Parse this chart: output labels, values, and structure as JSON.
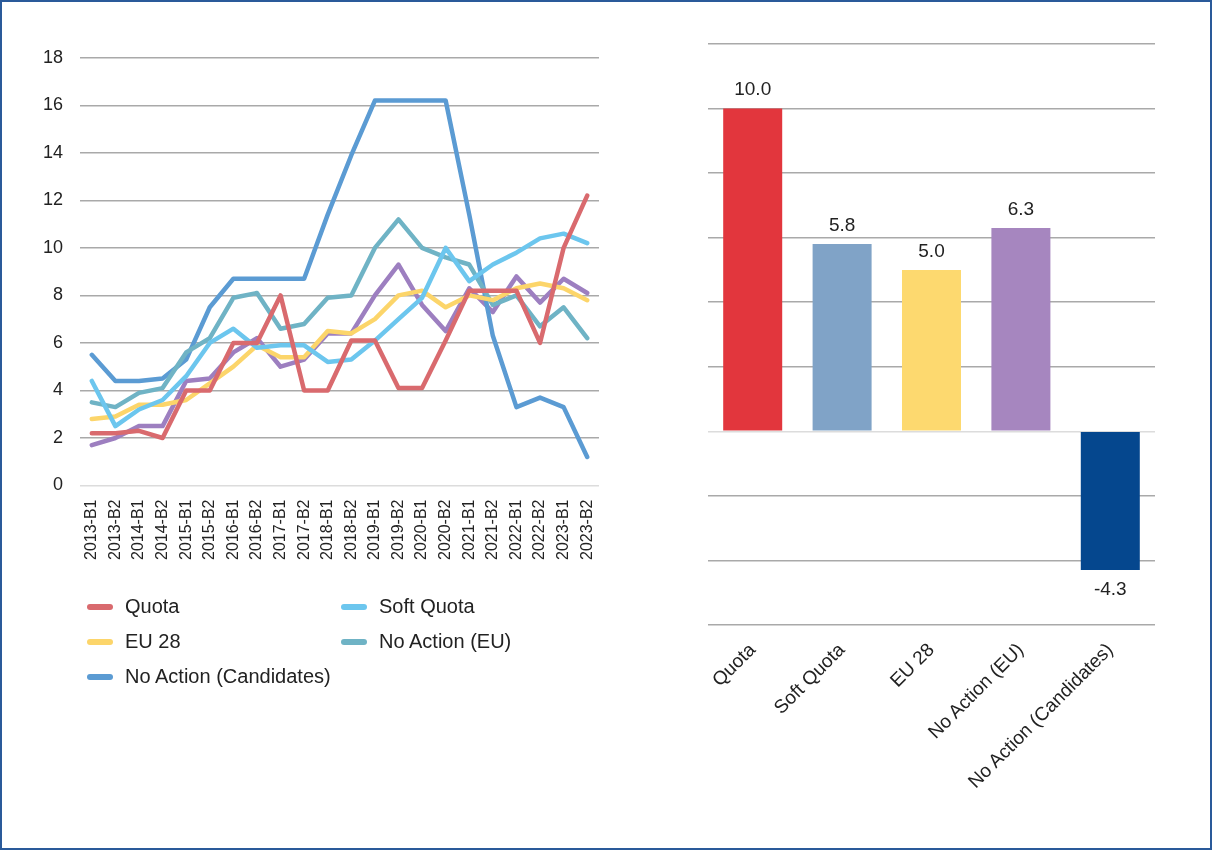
{
  "chart_data": [
    {
      "type": "line",
      "categories": [
        "2013-B1",
        "2013-B2",
        "2014-B1",
        "2014-B2",
        "2015-B1",
        "2015-B2",
        "2016-B1",
        "2016-B2",
        "2017-B1",
        "2017-B2",
        "2018-B1",
        "2018-B2",
        "2019-B1",
        "2019-B2",
        "2020-B1",
        "2020-B2",
        "2021-B1",
        "2021-B2",
        "2022-B1",
        "2022-B2",
        "2023-B1",
        "2023-B2"
      ],
      "series": [
        {
          "name": "Quota",
          "color": "#d96a6e",
          "values": [
            2.2,
            2.2,
            2.3,
            2.0,
            4.0,
            4.0,
            6.0,
            6.0,
            8.0,
            4.0,
            4.0,
            6.1,
            6.1,
            4.1,
            4.1,
            6.1,
            8.2,
            8.2,
            8.2,
            6.0,
            10.0,
            12.2
          ]
        },
        {
          "name": "Soft Quota",
          "color": "#6cc6ee",
          "values": [
            4.4,
            2.5,
            3.2,
            3.6,
            4.6,
            6.0,
            6.6,
            5.8,
            5.9,
            5.9,
            5.2,
            5.3,
            6.1,
            7.0,
            7.9,
            10.0,
            8.6,
            9.3,
            9.8,
            10.4,
            10.6,
            10.2
          ]
        },
        {
          "name": "EU 28",
          "color": "#fcd56a",
          "values": [
            2.8,
            2.9,
            3.4,
            3.4,
            3.6,
            4.3,
            5.0,
            5.9,
            5.4,
            5.4,
            6.5,
            6.4,
            7.0,
            8.0,
            8.2,
            7.5,
            8.0,
            7.8,
            8.3,
            8.5,
            8.3,
            7.8
          ]
        },
        {
          "name": "No Action (EU)",
          "color": "#6fb3c5",
          "values": [
            3.5,
            3.3,
            3.9,
            4.1,
            5.6,
            6.2,
            7.9,
            8.1,
            6.6,
            6.8,
            7.9,
            8.0,
            10.0,
            11.2,
            10.0,
            9.6,
            9.3,
            7.6,
            8.0,
            6.7,
            7.5,
            6.2
          ]
        },
        {
          "name": "No Action (Candidates)",
          "color": "#5b9bd3",
          "values": [
            5.5,
            4.4,
            4.4,
            4.5,
            5.3,
            7.5,
            8.7,
            8.7,
            8.7,
            8.7,
            11.4,
            13.9,
            16.2,
            16.2,
            16.2,
            16.2,
            11.4,
            6.3,
            3.3,
            3.7,
            3.3,
            1.2
          ]
        },
        {
          "color": "#9d7fc0",
          "values": [
            1.7,
            2.0,
            2.5,
            2.5,
            4.4,
            4.5,
            5.6,
            6.2,
            5.0,
            5.3,
            6.4,
            6.4,
            8.0,
            9.3,
            7.6,
            6.5,
            8.3,
            7.3,
            8.8,
            7.7,
            8.7,
            8.1
          ]
        }
      ],
      "ylim": [
        0,
        18
      ],
      "yticks": [
        0,
        2,
        4,
        6,
        8,
        10,
        12,
        14,
        16,
        18
      ],
      "grid": "y",
      "legend": "bottom",
      "marker": "none"
    },
    {
      "type": "bar",
      "categories": [
        "Quota",
        "Soft Quota",
        "EU 28",
        "No Action (EU)",
        "No Action (Candidates)"
      ],
      "values": [
        10.0,
        5.8,
        5.0,
        6.3,
        -4.3
      ],
      "colors": [
        "#e2363d",
        "#80a3c7",
        "#fdd96f",
        "#a686bf",
        "#05478e"
      ],
      "value_labels": [
        "10.0",
        "5.8",
        "5.0",
        "6.3",
        "-4.3"
      ],
      "ylim": [
        -6,
        12
      ],
      "yticks": [
        {
          "value": -6,
          "label": null
        },
        {
          "value": -4,
          "label": null
        },
        {
          "value": -2,
          "label": null
        },
        {
          "value": 0,
          "label": null
        },
        {
          "value": 2,
          "label": null
        },
        {
          "value": 4,
          "label": null
        },
        {
          "value": 6,
          "label": null
        },
        {
          "value": 8,
          "label": null
        },
        {
          "value": 10,
          "label": null
        },
        {
          "value": 12,
          "label": null
        }
      ],
      "grid": "y",
      "tick_labels": "x"
    }
  ]
}
